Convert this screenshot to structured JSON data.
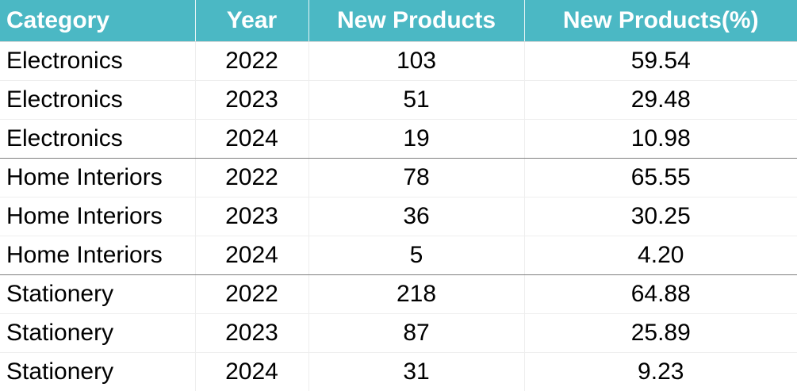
{
  "chart_data": {
    "type": "table",
    "columns": [
      "Category",
      "Year",
      "New Products",
      "New Products(%)"
    ],
    "rows": [
      [
        "Electronics",
        "2022",
        "103",
        "59.54"
      ],
      [
        "Electronics",
        "2023",
        "51",
        "29.48"
      ],
      [
        "Electronics",
        "2024",
        "19",
        "10.98"
      ],
      [
        "Home Interiors",
        "2022",
        "78",
        "65.55"
      ],
      [
        "Home Interiors",
        "2023",
        "36",
        "30.25"
      ],
      [
        "Home Interiors",
        "2024",
        "5",
        "4.20"
      ],
      [
        "Stationery",
        "2022",
        "218",
        "64.88"
      ],
      [
        "Stationery",
        "2023",
        "87",
        "25.89"
      ],
      [
        "Stationery",
        "2024",
        "31",
        "9.23"
      ]
    ],
    "colors": {
      "header_background": "#4bb8c4",
      "header_text": "#ffffff",
      "body_text": "#000000"
    }
  }
}
